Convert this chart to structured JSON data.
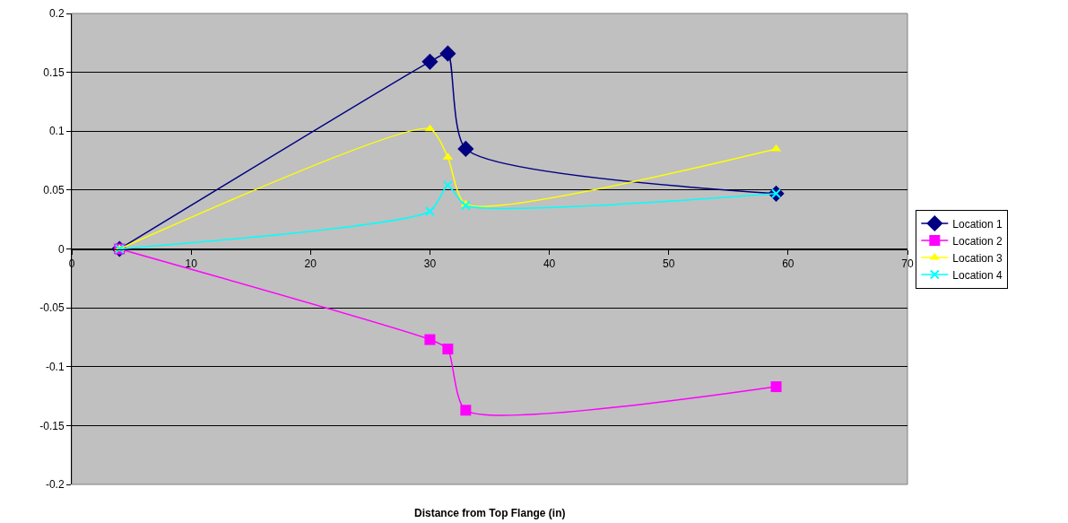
{
  "chart_data": {
    "type": "line",
    "xlabel": "Distance from Top Flange (in)",
    "x": [
      4,
      30,
      31.5,
      33,
      59
    ],
    "series": [
      {
        "name": "Location 1",
        "color": "#000080",
        "marker": "diamond",
        "values": [
          0,
          0.159,
          0.166,
          0.085,
          0.047
        ]
      },
      {
        "name": "Location 2",
        "color": "#ff00ff",
        "marker": "square",
        "values": [
          0,
          -0.077,
          -0.085,
          -0.137,
          -0.117
        ]
      },
      {
        "name": "Location 3",
        "color": "#ffff00",
        "marker": "triangle",
        "values": [
          0,
          0.102,
          0.078,
          0.038,
          0.085
        ]
      },
      {
        "name": "Location 4",
        "color": "#00ffff",
        "marker": "cross",
        "values": [
          0,
          0.032,
          0.054,
          0.037,
          0.047
        ]
      }
    ],
    "xlim": [
      0,
      70
    ],
    "xticks": [
      0,
      10,
      20,
      30,
      40,
      50,
      60,
      70
    ],
    "ylim": [
      -0.2,
      0.2
    ],
    "yticks": [
      -0.2,
      -0.15,
      -0.1,
      -0.05,
      0,
      0.05,
      0.1,
      0.15,
      0.2
    ],
    "grid": "y",
    "legend": "right",
    "line_style": "solid"
  }
}
